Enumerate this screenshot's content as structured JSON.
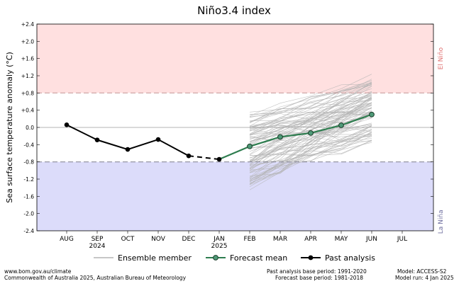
{
  "chart_data": {
    "type": "line",
    "title": "Niño3.4 index",
    "ylabel": "Sea surface temperature anomaly (°C)",
    "ylim": [
      -2.4,
      2.4
    ],
    "yticks": [
      "+2.4",
      "+2.0",
      "+1.6",
      "+1.2",
      "+0.8",
      "+0.4",
      "0.0",
      "-0.4",
      "-0.8",
      "-1.2",
      "-1.6",
      "-2.0",
      "-2.4"
    ],
    "ytick_values": [
      2.4,
      2.0,
      1.6,
      1.2,
      0.8,
      0.4,
      0.0,
      -0.4,
      -0.8,
      -1.2,
      -1.6,
      -2.0,
      -2.4
    ],
    "categories": [
      "AUG",
      "SEP",
      "OCT",
      "NOV",
      "DEC",
      "JAN",
      "FEB",
      "MAR",
      "APR",
      "MAY",
      "JUN",
      "JUL"
    ],
    "year_labels": [
      {
        "index": 1,
        "text": "2024"
      },
      {
        "index": 5,
        "text": "2025"
      }
    ],
    "thresholds": {
      "el_nino": 0.8,
      "la_nina": -0.8,
      "el_nino_label": "El Niño",
      "la_nina_label": "La Niña",
      "el_nino_color": "#ff0000",
      "la_nina_color": "#0000ff"
    },
    "series": [
      {
        "name": "Past analysis",
        "color": "#000000",
        "x": [
          0,
          1,
          2,
          3,
          4
        ],
        "values": [
          0.06,
          -0.29,
          -0.51,
          -0.28,
          -0.66
        ]
      },
      {
        "name": "Forecast mean",
        "color": "#2e7d4f",
        "x": [
          5,
          6,
          7,
          8,
          9,
          10
        ],
        "values": [
          -0.74,
          -0.44,
          -0.22,
          -0.13,
          0.05,
          0.3
        ]
      }
    ],
    "gap_connector": {
      "from_x": 4,
      "from_y": -0.66,
      "to_x": 5,
      "to_y": -0.74
    },
    "ensemble": {
      "name": "Ensemble member",
      "color": "#b3b3b3",
      "x_start": 6,
      "x_end": 10,
      "members": 99,
      "start_range": [
        -1.4,
        0.3
      ],
      "end_range": [
        -0.6,
        1.3
      ]
    },
    "legend": [
      {
        "key": "ensemble",
        "label": "Ensemble member"
      },
      {
        "key": "forecast",
        "label": "Forecast mean"
      },
      {
        "key": "past",
        "label": "Past analysis"
      }
    ],
    "legend_position": "bottom",
    "grid": false
  },
  "footer": {
    "left_line1": "www.bom.gov.au/climate",
    "left_line2": "Commonwealth of Australia 2025, Australian Bureau of Meteorology",
    "mid_line1": "Past analysis base period: 1991-2020",
    "mid_line2": "Forecast base period: 1981-2018",
    "right_line1": "Model: ACCESS-S2",
    "right_line2": "Model run: 4 Jan 2025"
  }
}
